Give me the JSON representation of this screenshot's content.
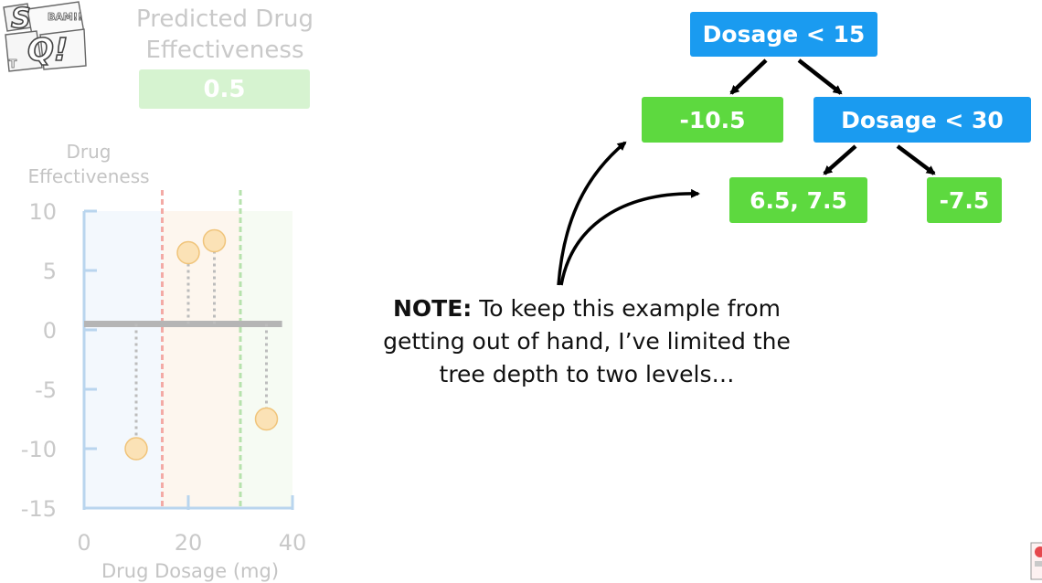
{
  "logo": {
    "text": "StatQuest",
    "badge": "BAM!!"
  },
  "prediction": {
    "title_line1": "Predicted Drug",
    "title_line2": "Effectiveness",
    "value": "0.5"
  },
  "chart_data": {
    "type": "scatter",
    "ylabel_line1": "Drug",
    "ylabel_line2": "Effectiveness",
    "xlabel": "Drug Dosage (mg)",
    "xlim": [
      0,
      40
    ],
    "ylim": [
      -15,
      10
    ],
    "x_ticks": [
      "0",
      "20",
      "40"
    ],
    "y_ticks": [
      "10",
      "5",
      "0",
      "-5",
      "-10",
      "-15"
    ],
    "prediction_line": 0.5,
    "thresholds": [
      {
        "x": 15,
        "color": "#f3aaa5"
      },
      {
        "x": 30,
        "color": "#b6e2ad"
      }
    ],
    "points": [
      {
        "x": 10,
        "y": -10
      },
      {
        "x": 20,
        "y": 6.5
      },
      {
        "x": 25,
        "y": 7.5
      },
      {
        "x": 35,
        "y": -7.5
      }
    ],
    "colors": {
      "point_fill": "#fbe2b6",
      "point_stroke": "#f0c47a",
      "axis": "#b9d5ee",
      "residual": "#bcbcbc"
    }
  },
  "tree": {
    "root": "Dosage < 15",
    "left_leaf": "-10.5",
    "right_node": "Dosage < 30",
    "right_left_leaf": "6.5, 7.5",
    "right_right_leaf": "-7.5",
    "colors": {
      "node": "#1a9bf0",
      "leaf": "#5dd93f"
    }
  },
  "note": {
    "bold": "NOTE:",
    "line1": " To keep this example from",
    "line2": "getting out of hand, I’ve limited the",
    "line3": "tree depth to two levels…"
  }
}
